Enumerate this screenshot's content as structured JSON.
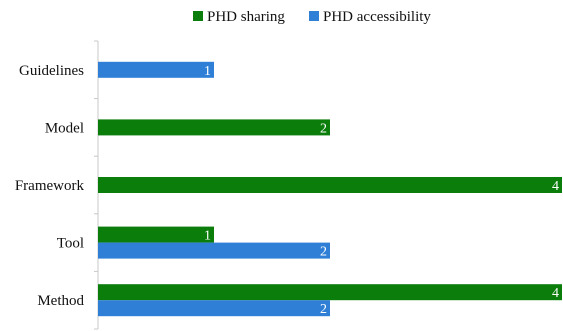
{
  "chart_data": {
    "type": "bar",
    "orientation": "horizontal",
    "categories": [
      "Guidelines",
      "Model",
      "Framework",
      "Tool",
      "Method"
    ],
    "series": [
      {
        "name": "PHD sharing",
        "color": "#0b7d0b",
        "values": [
          null,
          2,
          4,
          1,
          4
        ]
      },
      {
        "name": "PHD accessibility",
        "color": "#2f7fd6",
        "values": [
          1,
          null,
          null,
          2,
          2
        ]
      }
    ],
    "xlim": [
      0,
      4
    ],
    "grid": false,
    "legend": "top-center",
    "data_labels": true,
    "title": "",
    "xlabel": "",
    "ylabel": ""
  }
}
